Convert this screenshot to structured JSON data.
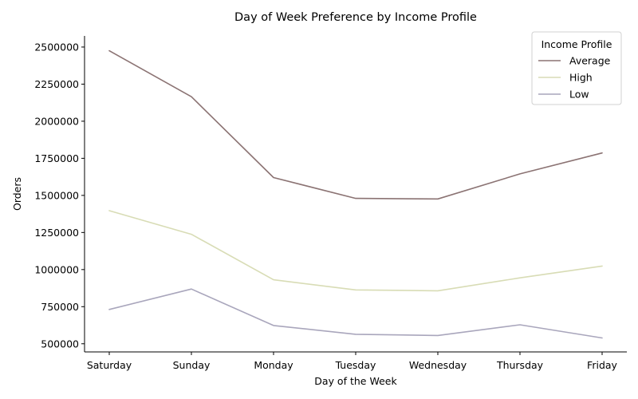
{
  "chart_data": {
    "type": "line",
    "title": "Day of Week Preference by Income Profile",
    "xlabel": "Day of the Week",
    "ylabel": "Orders",
    "categories": [
      "Saturday",
      "Sunday",
      "Monday",
      "Tuesday",
      "Wednesday",
      "Thursday",
      "Friday"
    ],
    "ylim": [
      445000,
      2575000
    ],
    "yticks": [
      500000,
      750000,
      1000000,
      1250000,
      1500000,
      1750000,
      2000000,
      2250000,
      2500000
    ],
    "grid": false,
    "legend": {
      "title": "Income Profile",
      "position": "top-right"
    },
    "series": [
      {
        "name": "Average",
        "color": "#8b7373",
        "values": [
          2475000,
          2165000,
          1620000,
          1480000,
          1476000,
          1645000,
          1786000
        ]
      },
      {
        "name": "High",
        "color": "#d8dcb5",
        "values": [
          1397000,
          1238000,
          931000,
          863000,
          857000,
          944000,
          1024000
        ]
      },
      {
        "name": "Low",
        "color": "#a9a6bc",
        "values": [
          731000,
          869000,
          623000,
          564000,
          556000,
          628000,
          539000
        ]
      }
    ]
  }
}
